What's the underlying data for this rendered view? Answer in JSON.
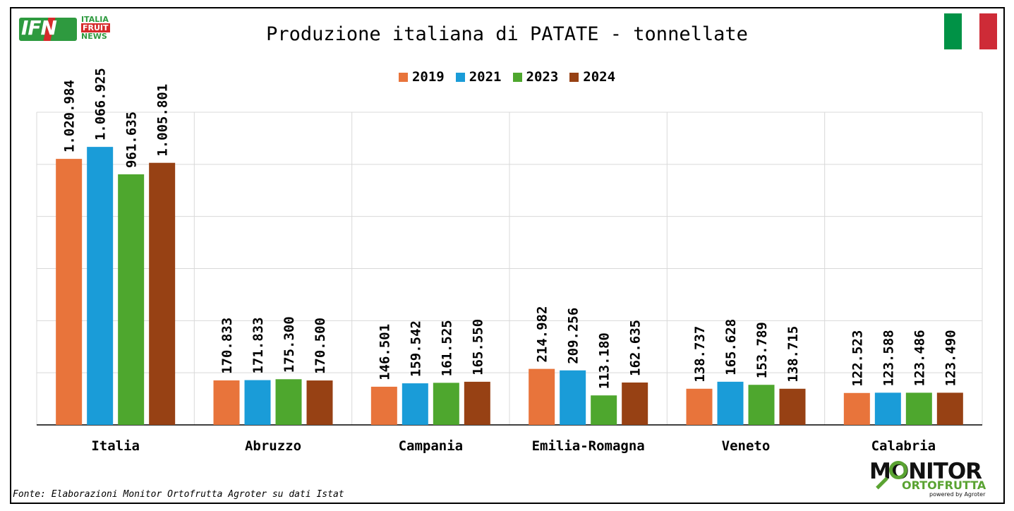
{
  "title": "Produzione italiana di PATATE - tonnellate",
  "logo_left": {
    "main": "IFN",
    "line1": "ITALIA",
    "line2": "FRUIT",
    "line3": "NEWS"
  },
  "logo_right": {
    "main": "MONITOR",
    "sub": "ORTOFRUTTA",
    "powered": "powered by Agroter"
  },
  "source": "Fonte: Elaborazioni Monitor Ortofrutta Agroter su dati Istat",
  "flag_colors": [
    "#009246",
    "#ffffff",
    "#ce2b37"
  ],
  "chart_data": {
    "type": "bar",
    "categories": [
      "Italia",
      "Abruzzo",
      "Campania",
      "Emilia-Romagna",
      "Veneto",
      "Calabria"
    ],
    "series": [
      {
        "name": "2019",
        "color": "#e8743b",
        "values": [
          1020984,
          170833,
          146501,
          214982,
          138737,
          122523
        ],
        "labels": [
          "1.020.984",
          "170.833",
          "146.501",
          "214.982",
          "138.737",
          "122.523"
        ]
      },
      {
        "name": "2021",
        "color": "#1a9cd8",
        "values": [
          1066925,
          171833,
          159542,
          209256,
          165628,
          123588
        ],
        "labels": [
          "1.066.925",
          "171.833",
          "159.542",
          "209.256",
          "165.628",
          "123.588"
        ]
      },
      {
        "name": "2023",
        "color": "#4ea72e",
        "values": [
          961635,
          175300,
          161525,
          113180,
          153789,
          123486
        ],
        "labels": [
          "961.635",
          "175.300",
          "161.525",
          "113.180",
          "153.789",
          "123.486"
        ]
      },
      {
        "name": "2024",
        "color": "#974114",
        "values": [
          1005801,
          170500,
          165550,
          162635,
          138715,
          123490
        ],
        "labels": [
          "1.005.801",
          "170.500",
          "165.550",
          "162.635",
          "138.715",
          "123.490"
        ]
      }
    ],
    "ylim": [
      0,
      1200000
    ],
    "grid": true,
    "legend": "top-center"
  }
}
